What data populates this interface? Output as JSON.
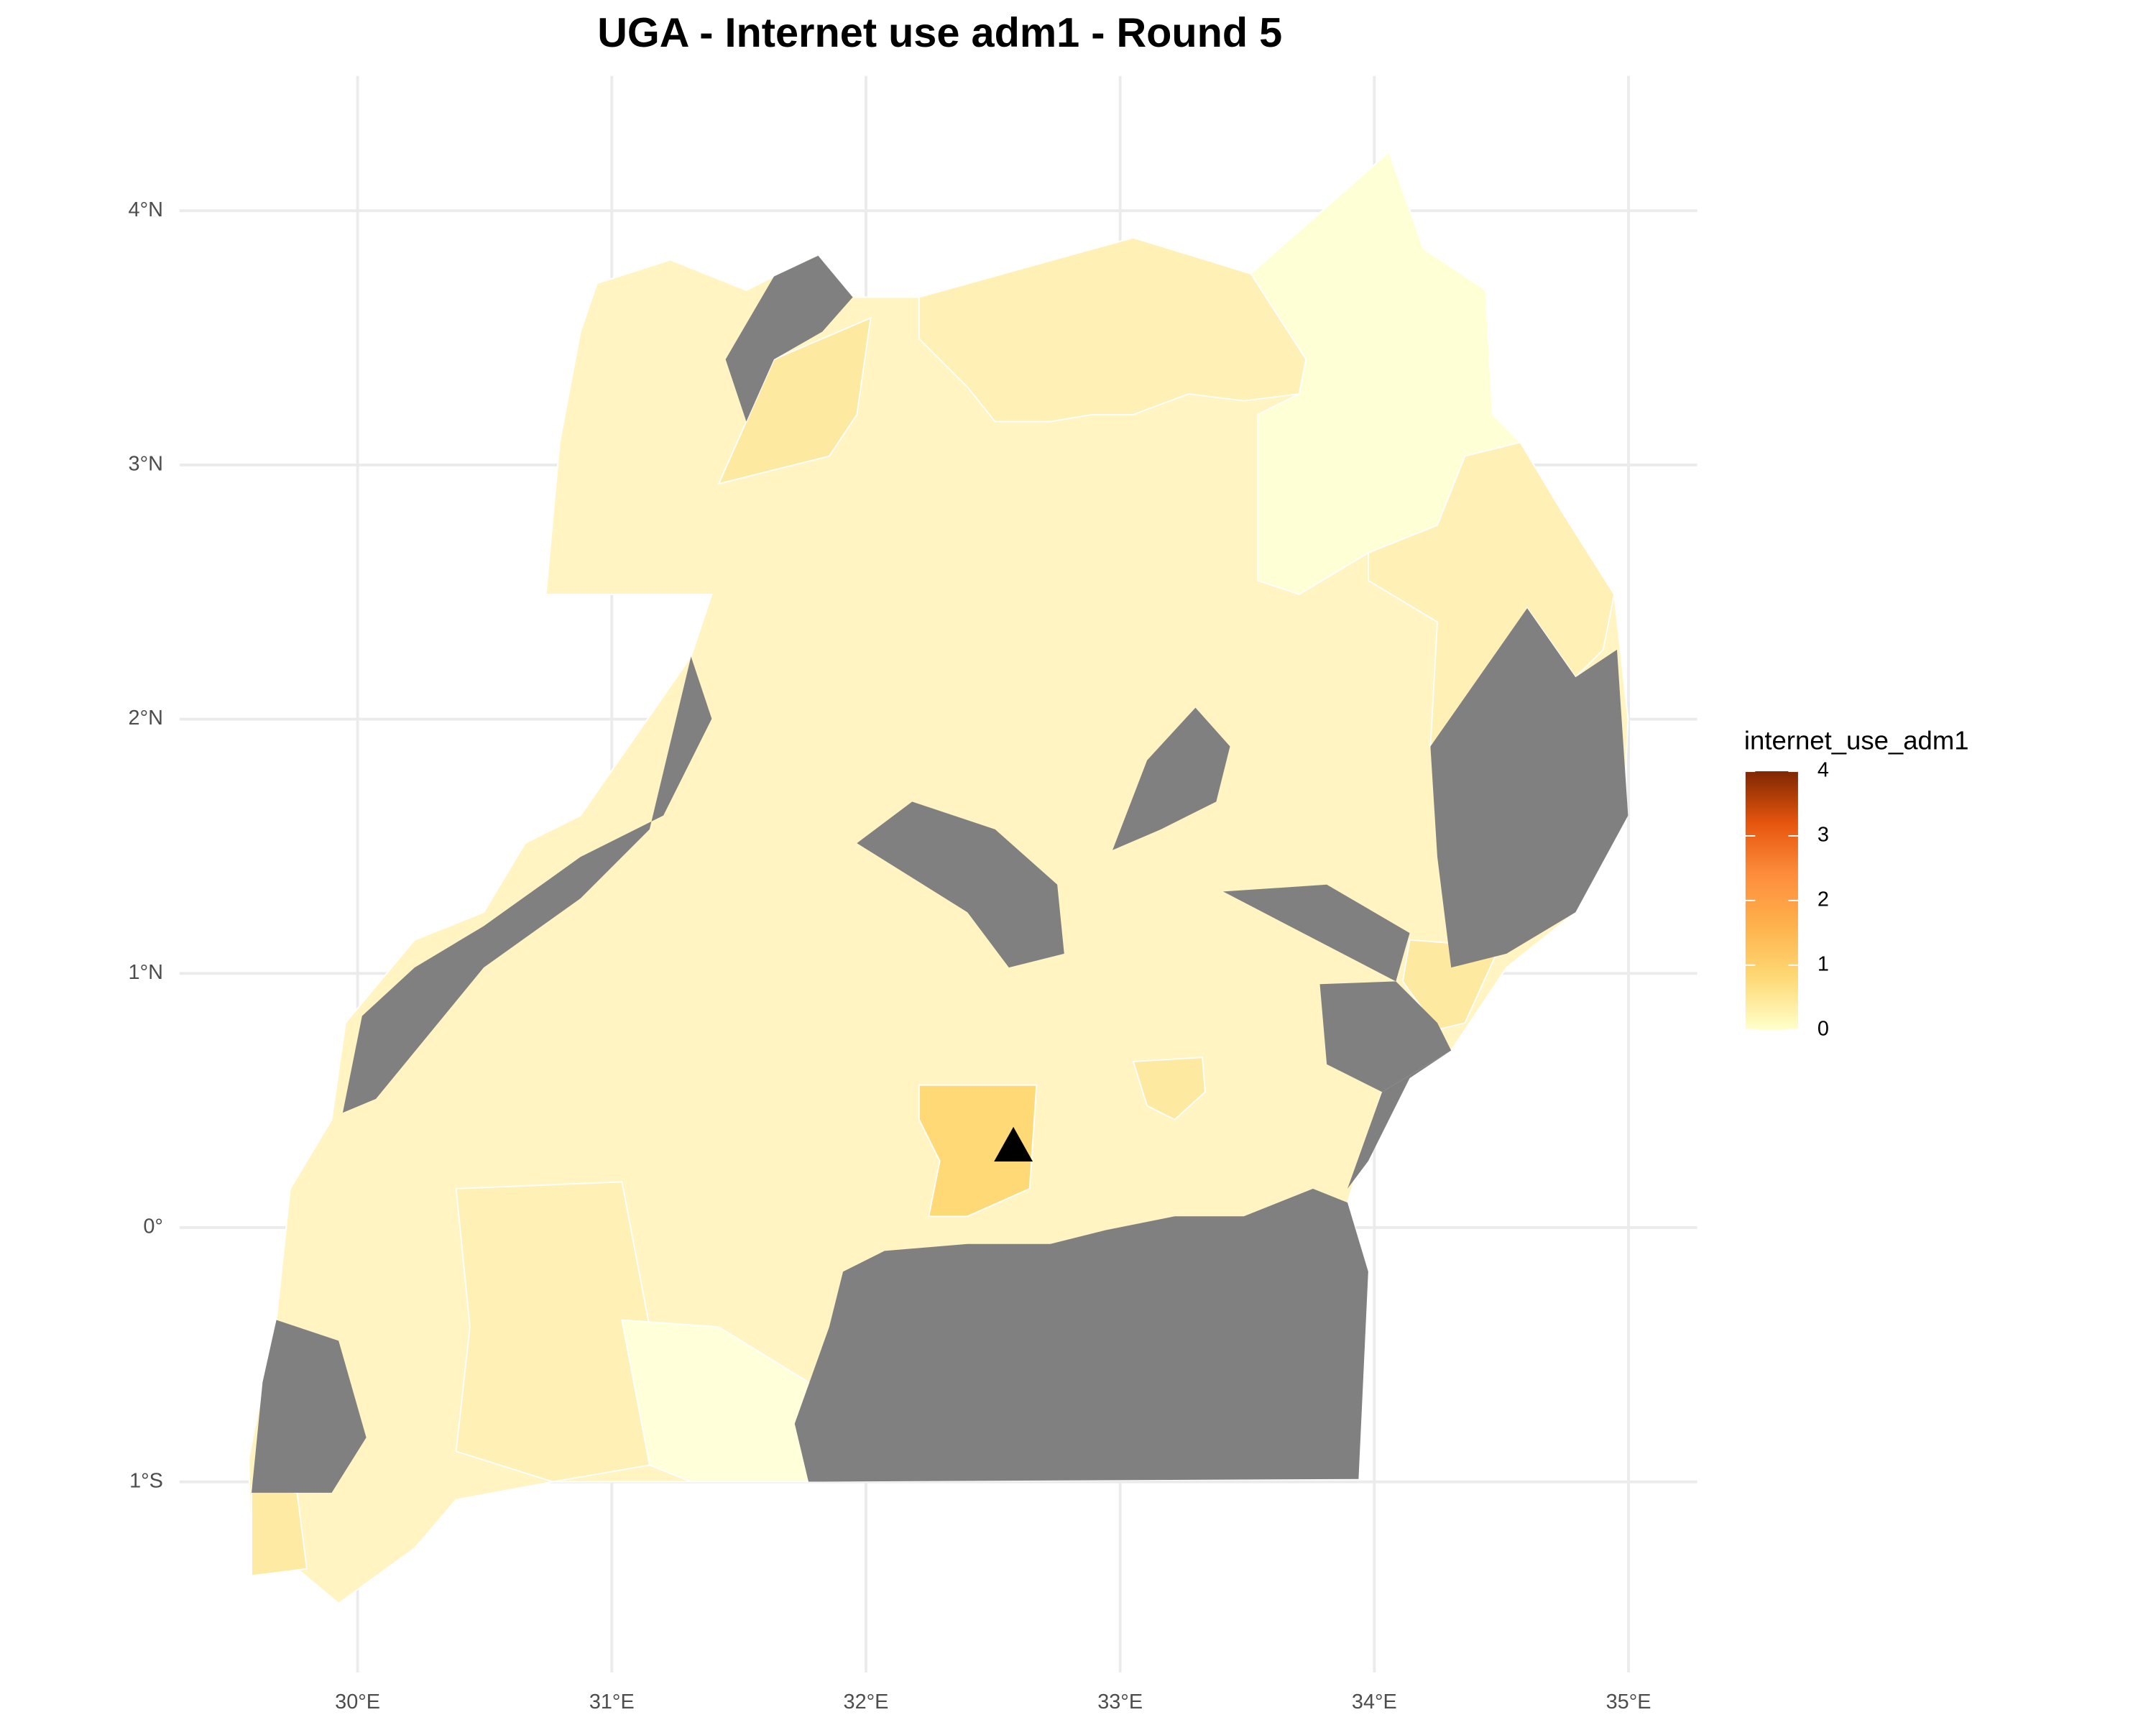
{
  "chart_data": {
    "type": "map",
    "title": "UGA - Internet use adm1 - Round 5",
    "xlim": [
      29.3,
      35.27
    ],
    "ylim": [
      -1.75,
      4.53
    ],
    "xticks": [
      {
        "value": 30,
        "label": "30°E"
      },
      {
        "value": 31,
        "label": "31°E"
      },
      {
        "value": 32,
        "label": "32°E"
      },
      {
        "value": 33,
        "label": "33°E"
      },
      {
        "value": 34,
        "label": "34°E"
      },
      {
        "value": 35,
        "label": "35°E"
      }
    ],
    "yticks": [
      {
        "value": -1,
        "label": "1°S"
      },
      {
        "value": 0,
        "label": "0°"
      },
      {
        "value": 1,
        "label": "1°N"
      },
      {
        "value": 2,
        "label": "2°N"
      },
      {
        "value": 3,
        "label": "3°N"
      },
      {
        "value": 4,
        "label": "4°N"
      }
    ],
    "grid": true,
    "legend": {
      "title": "internet_use_adm1",
      "position": "right",
      "limits": [
        0,
        4
      ],
      "ticks": [
        0,
        1,
        2,
        3,
        4
      ],
      "colors": [
        "#ffffcc",
        "#fed976",
        "#feb24c",
        "#fd8d3c",
        "#e6550d",
        "#7f2704"
      ]
    },
    "marker": {
      "lon": 32.58,
      "lat": 0.32,
      "color": "#000000"
    }
  }
}
